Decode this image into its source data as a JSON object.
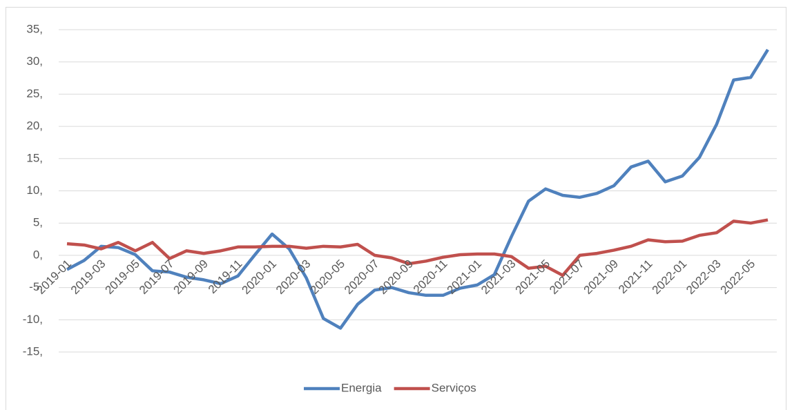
{
  "chart_data": {
    "type": "line",
    "categories": [
      "2019-01",
      null,
      "2019-03",
      null,
      "2019-05",
      null,
      "2019-07",
      null,
      "2019-09",
      null,
      "2019-11",
      null,
      "2020-01",
      null,
      "2020-03",
      null,
      "2020-05",
      null,
      "2020-07",
      null,
      "2020-09",
      null,
      "2020-11",
      null,
      "2021-01",
      null,
      "2021-03",
      null,
      "2021-05",
      null,
      "2021-07",
      null,
      "2021-09",
      null,
      "2021-11",
      null,
      "2022-01",
      null,
      "2022-03",
      null,
      "2022-05",
      null
    ],
    "series": [
      {
        "name": "Energia",
        "color": "#4f81bd",
        "values": [
          -2.2,
          -0.8,
          1.4,
          1.2,
          0.1,
          -2.4,
          -2.6,
          -3.4,
          -3.8,
          -4.4,
          -3.2,
          0.1,
          3.3,
          1.0,
          -3.5,
          -9.8,
          -11.3,
          -7.6,
          -5.4,
          -5.0,
          -5.8,
          -6.2,
          -6.2,
          -5.1,
          -4.6,
          -3.0,
          2.9,
          8.4,
          10.3,
          9.3,
          9.0,
          9.6,
          10.8,
          13.7,
          14.6,
          11.4,
          12.3,
          15.2,
          20.3,
          27.2,
          27.6,
          31.9
        ]
      },
      {
        "name": "Serviços",
        "color": "#c0504d",
        "values": [
          1.8,
          1.6,
          1.0,
          2.0,
          0.7,
          2.0,
          -0.5,
          0.7,
          0.3,
          0.7,
          1.3,
          1.3,
          1.4,
          1.4,
          1.1,
          1.4,
          1.3,
          1.7,
          0.0,
          -0.4,
          -1.3,
          -0.9,
          -0.3,
          0.1,
          0.2,
          0.2,
          -0.2,
          -2.0,
          -1.7,
          -3.1,
          0.0,
          0.3,
          0.8,
          1.4,
          2.4,
          2.1,
          2.2,
          3.1,
          3.5,
          5.3,
          5.0,
          5.5
        ]
      }
    ],
    "ylim": [
      -15,
      35
    ],
    "yticks": [
      {
        "value": -15,
        "label": "-15,"
      },
      {
        "value": -10,
        "label": "-10,"
      },
      {
        "value": -5,
        "label": "-5,"
      },
      {
        "value": 0,
        "label": "0,"
      },
      {
        "value": 5,
        "label": "5,"
      },
      {
        "value": 10,
        "label": "10,"
      },
      {
        "value": 15,
        "label": "15,"
      },
      {
        "value": 20,
        "label": "20,"
      },
      {
        "value": 25,
        "label": "25,"
      },
      {
        "value": 30,
        "label": "30,"
      },
      {
        "value": 35,
        "label": "35,"
      }
    ],
    "grid": true,
    "legend": "bottom"
  }
}
